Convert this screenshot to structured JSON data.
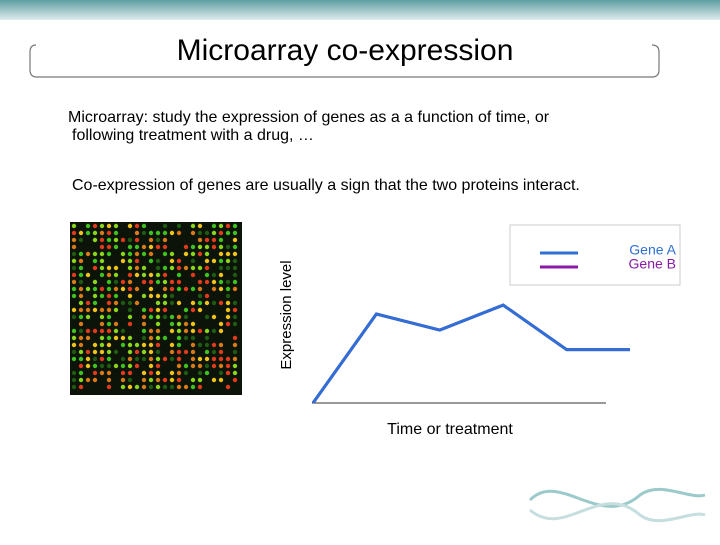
{
  "slide_title": "Microarray co-expression",
  "paragraphs": [
    "Microarray: study the expression of genes as a a function of time, or",
    "following treatment with a drug, …",
    "Co-expression of genes are usually a sign that the two proteins interact."
  ],
  "chart_data": {
    "type": "line",
    "y_label": "Expression level",
    "x_label": "Time or treatment",
    "categories": [
      null,
      null,
      null,
      null,
      null,
      null
    ],
    "ylim": [
      0,
      100
    ],
    "series": [
      {
        "name": "Gene A",
        "color": "#2f6fd6",
        "values": [
          0,
          50,
          41,
          55,
          30,
          30
        ]
      },
      {
        "name": "Gene B",
        "color": "#8a1aa8",
        "values": [
          0,
          50,
          41,
          55,
          30,
          30
        ]
      }
    ]
  }
}
